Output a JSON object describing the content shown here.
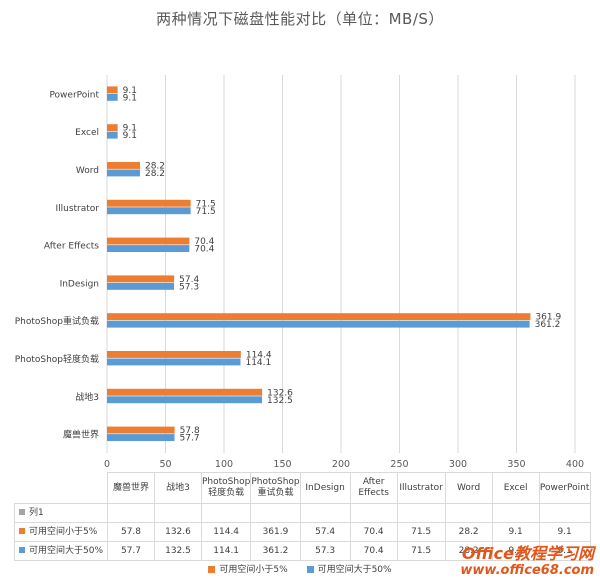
{
  "chart_data": {
    "type": "bar",
    "orientation": "horizontal",
    "title": "两种情况下磁盘性能对比（单位：MB/S）",
    "categories": [
      "PowerPoint",
      "Excel",
      "Word",
      "Illustrator",
      "After Effects",
      "InDesign",
      "PhotoShop重试负载",
      "PhotoShop轻度负载",
      "战地3",
      "魔兽世界"
    ],
    "series": [
      {
        "name": "可用空间小于5%",
        "color": "#ed7d31",
        "values": [
          9.1,
          9.1,
          28.2,
          71.5,
          70.4,
          57.4,
          361.9,
          114.4,
          132.6,
          57.8
        ]
      },
      {
        "name": "可用空间大于50%",
        "color": "#5b9bd5",
        "values": [
          9.1,
          9.1,
          28.2,
          71.5,
          70.4,
          57.3,
          361.2,
          114.1,
          132.5,
          57.7
        ]
      }
    ],
    "xlim": [
      0,
      400
    ],
    "xticks": [
      0,
      50,
      100,
      150,
      200,
      250,
      300,
      350,
      400
    ],
    "grid": true,
    "legend_position": "bottom"
  },
  "table": {
    "headers": [
      "魔兽世界",
      "战地3",
      "PhotoShop\n轻度负载",
      "PhotoShop\n重试负载",
      "InDesign",
      "After\nEffects",
      "Illustrator",
      "Word",
      "Excel",
      "PowerPoint"
    ],
    "rows": [
      {
        "label": "列1",
        "color": "#a5a5a5",
        "values": [
          "",
          "",
          "",
          "",
          "",
          "",
          "",
          "",
          "",
          ""
        ]
      },
      {
        "label": "可用空间小于5%",
        "color": "#ed7d31",
        "values": [
          "57.8",
          "132.6",
          "114.4",
          "361.9",
          "57.4",
          "70.4",
          "71.5",
          "28.2",
          "9.1",
          "9.1"
        ]
      },
      {
        "label": "可用空间大于50%",
        "color": "#5b9bd5",
        "values": [
          "57.7",
          "132.5",
          "114.1",
          "361.2",
          "57.3",
          "70.4",
          "71.5",
          "28.2",
          "9.1",
          "9.1"
        ]
      }
    ]
  },
  "legend": [
    {
      "label": "可用空间小于5%",
      "color": "#ed7d31"
    },
    {
      "label": "可用空间大于50%",
      "color": "#5b9bd5"
    }
  ],
  "watermark": {
    "line1a": "Office",
    "line1b": "教程学习网",
    "line2": "www.office68.com"
  }
}
